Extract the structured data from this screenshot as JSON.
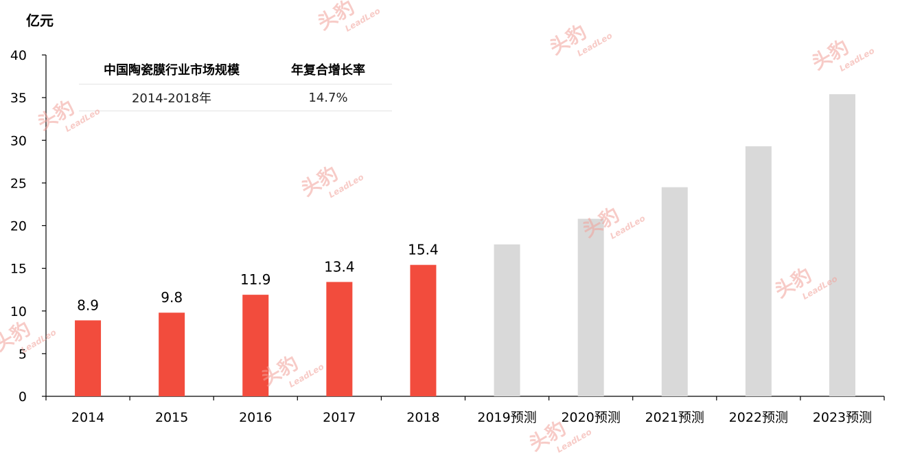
{
  "unit_label": "亿元",
  "legend_table": {
    "headers": [
      "中国陶瓷膜行业市场规模",
      "年复合增长率"
    ],
    "rows": [
      [
        "2014-2018年",
        "14.7%"
      ]
    ]
  },
  "watermark": {
    "cn": "头豹",
    "en": "LeadLeo"
  },
  "colors": {
    "actual": "#f24c3d",
    "forecast": "#d9d9d9",
    "axis": "#000000"
  },
  "chart_data": {
    "type": "bar",
    "categories": [
      "2014",
      "2015",
      "2016",
      "2017",
      "2018",
      "2019预测",
      "2020预测",
      "2021预测",
      "2022预测",
      "2023预测"
    ],
    "values": [
      8.9,
      9.8,
      11.9,
      13.4,
      15.4,
      17.8,
      20.8,
      24.5,
      29.3,
      35.4
    ],
    "data_labels": [
      "8.9",
      "9.8",
      "11.9",
      "13.4",
      "15.4",
      "",
      "",
      "",
      "",
      ""
    ],
    "series_kind": [
      "actual",
      "actual",
      "actual",
      "actual",
      "actual",
      "forecast",
      "forecast",
      "forecast",
      "forecast",
      "forecast"
    ],
    "ylabel": "亿元",
    "ylim": [
      0,
      40
    ],
    "yticks": [
      0,
      5,
      10,
      15,
      20,
      25,
      30,
      35,
      40
    ],
    "grid": false
  }
}
